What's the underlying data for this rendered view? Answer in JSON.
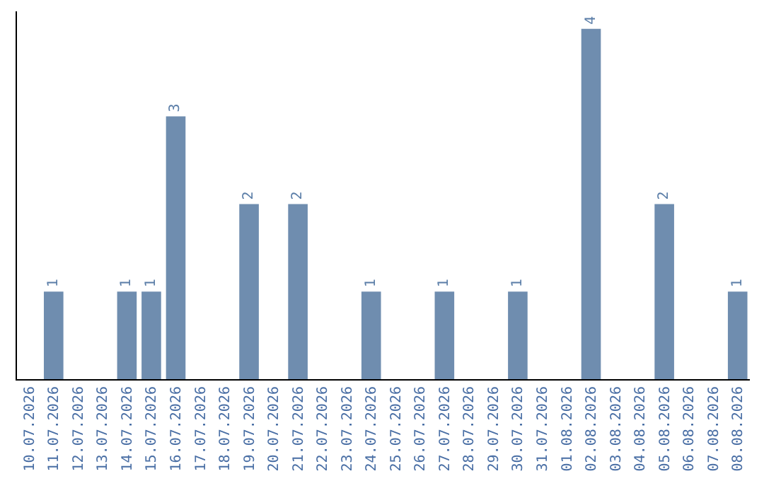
{
  "chart_data": {
    "type": "bar",
    "categories": [
      "10.07.2026",
      "11.07.2026",
      "12.07.2026",
      "13.07.2026",
      "14.07.2026",
      "15.07.2026",
      "16.07.2026",
      "17.07.2026",
      "18.07.2026",
      "19.07.2026",
      "20.07.2026",
      "21.07.2026",
      "22.07.2026",
      "23.07.2026",
      "24.07.2026",
      "25.07.2026",
      "26.07.2026",
      "27.07.2026",
      "28.07.2026",
      "29.07.2026",
      "30.07.2026",
      "31.07.2026",
      "01.08.2026",
      "02.08.2026",
      "03.08.2026",
      "04.08.2026",
      "05.08.2026",
      "06.08.2026",
      "07.08.2026",
      "08.08.2026"
    ],
    "values": [
      0,
      1,
      0,
      0,
      1,
      1,
      3,
      0,
      0,
      2,
      0,
      2,
      0,
      0,
      1,
      0,
      0,
      1,
      0,
      0,
      1,
      0,
      0,
      4,
      0,
      0,
      2,
      0,
      0,
      1
    ],
    "value_labels": [
      null,
      "1",
      null,
      null,
      "1",
      "1",
      "3",
      null,
      null,
      "2",
      null,
      "2",
      null,
      null,
      "1",
      null,
      null,
      "1",
      null,
      null,
      "1",
      null,
      null,
      "4",
      null,
      null,
      "2",
      null,
      null,
      "1"
    ],
    "color": "#6f8daf",
    "ylim": [
      0,
      4.2
    ],
    "tick_labels": "x",
    "grid": false,
    "legend": false
  }
}
